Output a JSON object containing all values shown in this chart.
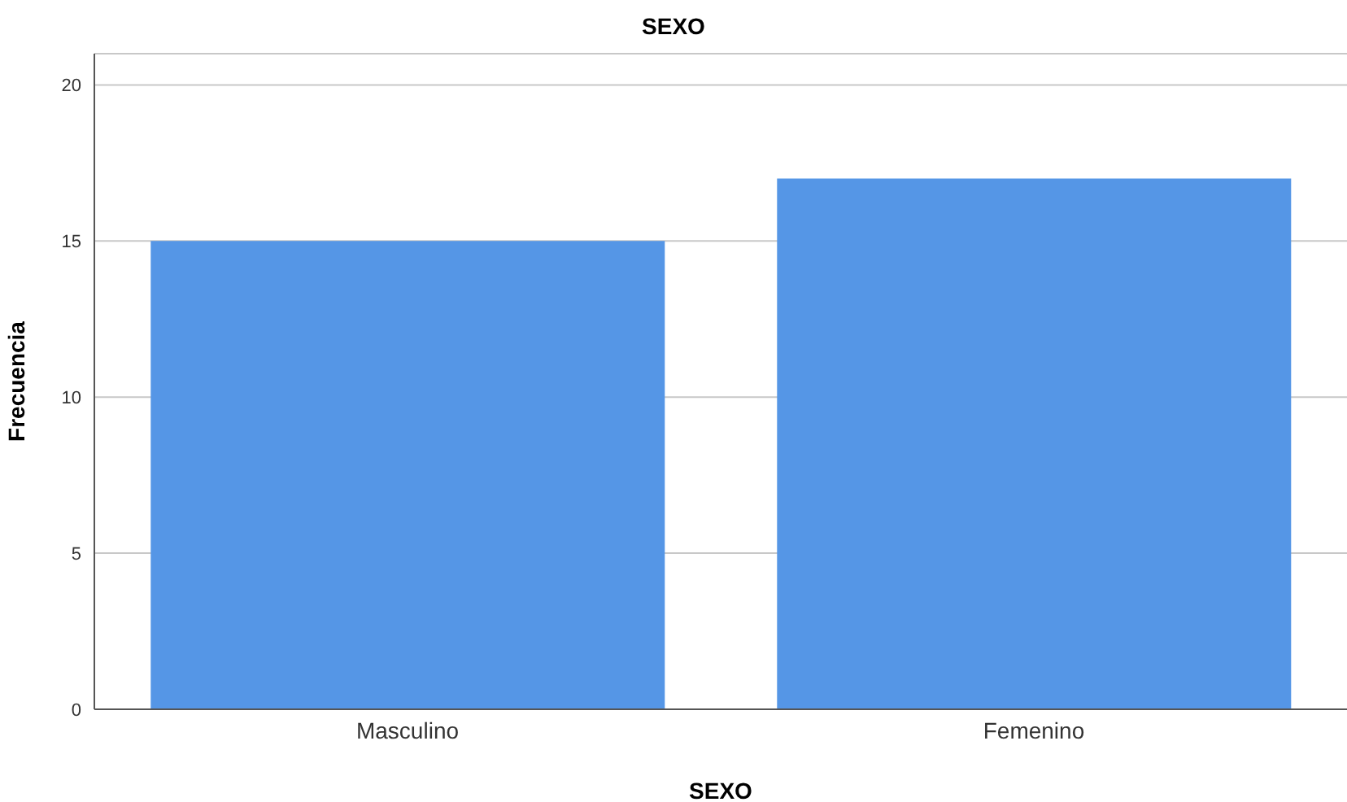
{
  "chart_data": {
    "type": "bar",
    "title": "SEXO",
    "xlabel": "SEXO",
    "ylabel": "Frecuencia",
    "categories": [
      "Masculino",
      "Femenino"
    ],
    "values": [
      15,
      17
    ],
    "color": "#5596e6",
    "ylim": [
      0,
      21
    ],
    "yticks": [
      0,
      5,
      10,
      15,
      20
    ],
    "grid": "y"
  }
}
